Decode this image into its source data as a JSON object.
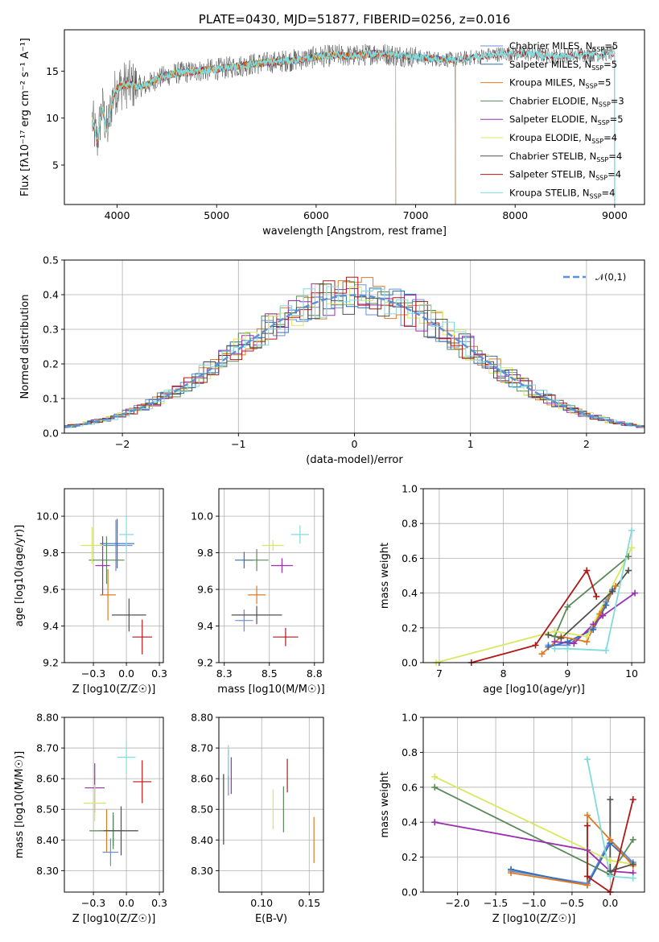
{
  "figure": {
    "title": "PLATE=0430, MJD=51877, FIBERID=0256, z=0.016",
    "colors": {
      "chabrier_miles": "#6a8fd8",
      "salpeter_miles": "#2f6fb8",
      "kroupa_miles": "#e07a20",
      "chabrier_elodie": "#5a8a5a",
      "salpeter_elodie": "#9a30b0",
      "kroupa_elodie": "#d8e860",
      "chabrier_stelib": "#505050",
      "salpeter_stelib": "#b01818",
      "kroupa_stelib": "#80dcdc"
    }
  },
  "chart_data": [
    {
      "id": "spectrum",
      "type": "line",
      "title": "PLATE=0430, MJD=51877, FIBERID=0256, z=0.016",
      "xlabel": "wavelength [Angstrom, rest frame]",
      "ylabel": "Flux [fλ10⁻¹⁷ erg cm⁻² s⁻¹ A⁻¹]",
      "xlim": [
        3470,
        9300
      ],
      "ylim": [
        0.8,
        19.4
      ],
      "xticks": [
        4000,
        5000,
        6000,
        7000,
        8000,
        9000
      ],
      "yticks": [
        5,
        10,
        15
      ],
      "legend_position": "top-right",
      "legend": [
        "Chabrier MILES, N_SSP=5",
        "Salpeter MILES, N_SSP=5",
        "Kroupa MILES, N_SSP=5",
        "Chabrier ELODIE, N_SSP=3",
        "Salpeter ELODIE, N_SSP=5",
        "Kroupa ELODIE, N_SSP=4",
        "Chabrier STELIB, N_SSP=4",
        "Salpeter STELIB, N_SSP=4",
        "Kroupa STELIB, N_SSP=4"
      ],
      "data_wavelength": [
        3750,
        3800,
        3850,
        3900,
        3950,
        4000,
        4100,
        4200,
        4300,
        4400,
        4600,
        4800,
        5000,
        5200,
        5400,
        5600,
        5800,
        6000,
        6200,
        6400,
        6600,
        6800,
        7000,
        7200,
        7400,
        7600,
        7800,
        8000,
        8200,
        8400,
        8600,
        8800,
        9000,
        9200
      ],
      "model_flux": [
        9.8,
        7.5,
        11.2,
        8.5,
        12.0,
        13.2,
        13.6,
        13.4,
        13.5,
        14.2,
        14.8,
        15.0,
        15.2,
        15.5,
        15.8,
        16.0,
        16.2,
        16.5,
        16.7,
        16.6,
        16.9,
        16.7,
        16.5,
        16.3,
        16.2,
        16.5,
        16.8,
        16.9,
        16.8,
        16.6,
        16.7,
        16.8,
        16.9,
        17.0
      ],
      "model_end_wavelength": {
        "miles": 7400,
        "elodie": 6800,
        "stelib": 9000
      },
      "noise_amplitude": 1.2
    },
    {
      "id": "residuals",
      "type": "line",
      "xlabel": "(data-model)/error",
      "ylabel": "Normed distribution",
      "xlim": [
        -2.5,
        2.5
      ],
      "ylim": [
        0,
        0.5
      ],
      "xticks": [
        -2,
        -1,
        0,
        1,
        2
      ],
      "yticks": [
        0.0,
        0.1,
        0.2,
        0.3,
        0.4,
        0.5
      ],
      "grid": true,
      "legend_position": "top-right",
      "reference_curve": "𝒩(0,1)",
      "bin_width": 0.1,
      "steps": 9
    },
    {
      "id": "age-vs-Z",
      "type": "scatter",
      "xlabel": "Z [log10(Z/Z☉)]",
      "ylabel": "age [log10(age/yr)]",
      "xlim": [
        -0.47,
        0.28
      ],
      "ylim": [
        9.2,
        10.15
      ],
      "xticks": [
        -0.25,
        0.0,
        0.25
      ],
      "yticks": [
        9.2,
        9.4,
        9.6,
        9.8,
        10.0
      ],
      "grid": true,
      "points": [
        {
          "x": -0.08,
          "y": 9.84,
          "xerr": 0.25,
          "yerr": 0.28
        },
        {
          "x": -0.07,
          "y": 9.85,
          "xerr": 0.26,
          "yerr": 0.27
        },
        {
          "x": -0.14,
          "y": 9.57,
          "xerr": 0.12,
          "yerr": 0.28
        },
        {
          "x": -0.15,
          "y": 9.76,
          "xerr": 0.27,
          "yerr": 0.26
        },
        {
          "x": -0.18,
          "y": 9.73,
          "xerr": 0.11,
          "yerr": 0.32
        },
        {
          "x": -0.26,
          "y": 9.84,
          "xerr": 0.17,
          "yerr": 0.2
        },
        {
          "x": 0.02,
          "y": 9.46,
          "xerr": 0.26,
          "yerr": 0.18
        },
        {
          "x": 0.12,
          "y": 9.34,
          "xerr": 0.15,
          "yerr": 0.19
        },
        {
          "x": 0.0,
          "y": 9.9,
          "xerr": 0.11,
          "yerr": 0.21
        }
      ]
    },
    {
      "id": "age-vs-mass",
      "type": "scatter",
      "xlabel": "mass [log10(M/M☉)]",
      "ylabel": "",
      "xlim": [
        8.22,
        8.8
      ],
      "ylim": [
        9.2,
        10.15
      ],
      "xticks": [
        8.25,
        8.5,
        8.75
      ],
      "yticks": [
        9.2,
        9.4,
        9.6,
        9.8,
        10.0
      ],
      "grid": true,
      "points": [
        {
          "x": 8.36,
          "y": 9.43,
          "xerr": 0.1,
          "yerr": 0.12
        },
        {
          "x": 8.36,
          "y": 9.76,
          "xerr": 0.1,
          "yerr": 0.09
        },
        {
          "x": 8.43,
          "y": 9.57,
          "xerr": 0.1,
          "yerr": 0.1
        },
        {
          "x": 8.43,
          "y": 9.76,
          "xerr": 0.13,
          "yerr": 0.12
        },
        {
          "x": 8.57,
          "y": 9.73,
          "xerr": 0.12,
          "yerr": 0.08
        },
        {
          "x": 8.52,
          "y": 9.84,
          "xerr": 0.12,
          "yerr": 0.06
        },
        {
          "x": 8.43,
          "y": 9.46,
          "xerr": 0.28,
          "yerr": 0.1
        },
        {
          "x": 8.59,
          "y": 9.34,
          "xerr": 0.14,
          "yerr": 0.1
        },
        {
          "x": 8.67,
          "y": 9.9,
          "xerr": 0.1,
          "yerr": 0.1
        }
      ]
    },
    {
      "id": "weight-vs-age",
      "type": "line",
      "xlabel": "age [log10(age/yr)]",
      "ylabel": "mass weight",
      "xlim": [
        6.75,
        10.2
      ],
      "ylim": [
        0,
        1
      ],
      "xticks": [
        7,
        8,
        9,
        10
      ],
      "yticks": [
        0.0,
        0.2,
        0.4,
        0.6,
        0.8,
        1.0
      ],
      "grid": true,
      "series": [
        {
          "x": [
            8.7,
            9.0,
            9.4,
            9.6,
            9.7
          ],
          "y": [
            0.1,
            0.1,
            0.2,
            0.35,
            0.42
          ]
        },
        {
          "x": [
            8.7,
            9.0,
            9.4,
            9.6,
            9.7
          ],
          "y": [
            0.09,
            0.12,
            0.19,
            0.33,
            0.41
          ]
        },
        {
          "x": [
            8.6,
            8.9,
            9.3,
            9.5,
            9.75
          ],
          "y": [
            0.05,
            0.15,
            0.12,
            0.28,
            0.44
          ]
        },
        {
          "x": [
            8.8,
            9.0,
            9.95
          ],
          "y": [
            0.15,
            0.32,
            0.61
          ]
        },
        {
          "x": [
            8.8,
            9.1,
            9.4,
            9.55,
            10.05
          ],
          "y": [
            0.12,
            0.11,
            0.22,
            0.27,
            0.4
          ]
        },
        {
          "x": [
            6.95,
            8.8,
            9.3,
            10.0
          ],
          "y": [
            0.0,
            0.18,
            0.15,
            0.66
          ]
        },
        {
          "x": [
            8.7,
            8.9,
            9.7,
            9.95
          ],
          "y": [
            0.16,
            0.14,
            0.41,
            0.53
          ]
        },
        {
          "x": [
            7.5,
            8.5,
            9.3,
            9.45
          ],
          "y": [
            0.0,
            0.1,
            0.53,
            0.38
          ]
        },
        {
          "x": [
            8.8,
            9.0,
            9.6,
            10.0
          ],
          "y": [
            0.08,
            0.08,
            0.07,
            0.76
          ]
        }
      ]
    },
    {
      "id": "mass-vs-Z",
      "type": "scatter",
      "xlabel": "Z [log10(Z/Z☉)]",
      "ylabel": "mass [log10(M/M☉)]",
      "xlim": [
        -0.47,
        0.28
      ],
      "ylim": [
        8.23,
        8.8
      ],
      "xticks": [
        -0.25,
        0.0,
        0.25
      ],
      "yticks": [
        8.3,
        8.4,
        8.5,
        8.6,
        8.7,
        8.8
      ],
      "grid": true,
      "points": [
        {
          "x": -0.12,
          "y": 8.36,
          "xerr": 0.12,
          "yerr": 0.09
        },
        {
          "x": -0.1,
          "y": 8.43,
          "xerr": 0.16,
          "yerr": 0.1
        },
        {
          "x": -0.15,
          "y": 8.43,
          "xerr": 0.12,
          "yerr": 0.14
        },
        {
          "x": -0.1,
          "y": 8.43,
          "xerr": 0.36,
          "yerr": 0.12
        },
        {
          "x": -0.24,
          "y": 8.57,
          "xerr": 0.15,
          "yerr": 0.16
        },
        {
          "x": -0.24,
          "y": 8.52,
          "xerr": 0.17,
          "yerr": 0.12
        },
        {
          "x": -0.04,
          "y": 8.43,
          "xerr": 0.26,
          "yerr": 0.16
        },
        {
          "x": 0.12,
          "y": 8.59,
          "xerr": 0.14,
          "yerr": 0.14
        },
        {
          "x": 0.0,
          "y": 8.67,
          "xerr": 0.14,
          "yerr": 0.11
        }
      ]
    },
    {
      "id": "mass-vs-ebv",
      "type": "scatter",
      "xlabel": "E(B-V)",
      "ylabel": "",
      "xlim": [
        0.055,
        0.165
      ],
      "ylim": [
        8.23,
        8.8
      ],
      "xticks": [
        0.1,
        0.15
      ],
      "yticks": [
        8.3,
        8.4,
        8.5,
        8.6,
        8.7,
        8.8
      ],
      "grid": true,
      "points": [
        {
          "x": 0.065,
          "y": 8.62,
          "xerr": 0,
          "yerr": 0.15
        },
        {
          "x": 0.06,
          "y": 8.5,
          "xerr": 0,
          "yerr": 0.23
        },
        {
          "x": 0.155,
          "y": 8.4,
          "xerr": 0,
          "yerr": 0.15
        },
        {
          "x": 0.123,
          "y": 8.5,
          "xerr": 0,
          "yerr": 0.15
        },
        {
          "x": 0.068,
          "y": 8.61,
          "xerr": 0,
          "yerr": 0.12
        },
        {
          "x": 0.112,
          "y": 8.5,
          "xerr": 0,
          "yerr": 0.13
        },
        {
          "x": 0.06,
          "y": 8.5,
          "xerr": 0,
          "yerr": 0.23
        },
        {
          "x": 0.127,
          "y": 8.61,
          "xerr": 0,
          "yerr": 0.11
        },
        {
          "x": 0.065,
          "y": 8.66,
          "xerr": 0,
          "yerr": 0.1
        }
      ]
    },
    {
      "id": "weight-vs-Z",
      "type": "line",
      "xlabel": "Z [log10(Z/Z☉)]",
      "ylabel": "mass weight",
      "xlim": [
        -2.45,
        0.45
      ],
      "ylim": [
        0,
        1
      ],
      "xticks": [
        -2.0,
        -1.5,
        -1.0,
        -0.5,
        0.0
      ],
      "yticks": [
        0.0,
        0.2,
        0.4,
        0.6,
        0.8,
        1.0
      ],
      "grid": true,
      "series": [
        {
          "x": [
            -1.3,
            -0.3,
            0.0,
            0.3
          ],
          "y": [
            0.12,
            0.05,
            0.3,
            0.17
          ]
        },
        {
          "x": [
            -1.3,
            -0.3,
            0.0,
            0.3
          ],
          "y": [
            0.13,
            0.04,
            0.28,
            0.16
          ]
        },
        {
          "x": [
            -1.3,
            -0.3,
            -0.3,
            0.0,
            0.3
          ],
          "y": [
            0.11,
            0.04,
            0.44,
            0.3,
            0.15
          ]
        },
        {
          "x": [
            -2.3,
            0.0,
            0.3
          ],
          "y": [
            0.6,
            0.1,
            0.3
          ]
        },
        {
          "x": [
            -2.3,
            -0.3,
            0.0,
            0.3
          ],
          "y": [
            0.4,
            0.24,
            0.12,
            0.11
          ]
        },
        {
          "x": [
            -2.3,
            0.0,
            0.3
          ],
          "y": [
            0.66,
            0.18,
            0.16
          ]
        },
        {
          "x": [
            0.0,
            0.0,
            0.3
          ],
          "y": [
            0.53,
            0.12,
            0.16
          ]
        },
        {
          "x": [
            -0.3,
            -0.3,
            0.0,
            0.3
          ],
          "y": [
            0.38,
            0.09,
            0.0,
            0.53
          ]
        },
        {
          "x": [
            -0.3,
            0.0,
            0.3
          ],
          "y": [
            0.76,
            0.09,
            0.08
          ]
        }
      ]
    }
  ]
}
